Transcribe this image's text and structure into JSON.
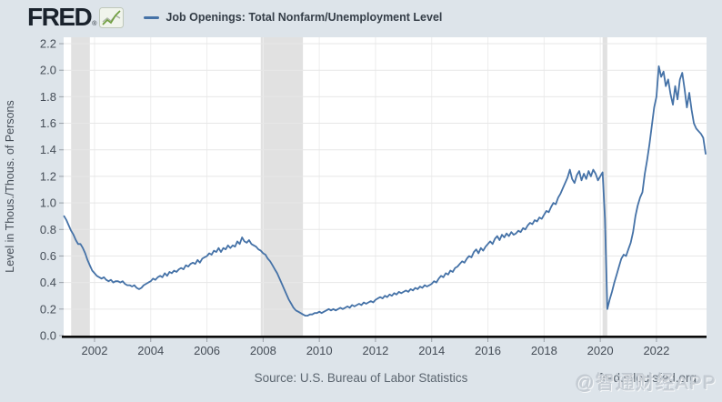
{
  "header": {
    "logo_text": "FRED",
    "logo_registered": "®",
    "legend": {
      "label": "Job Openings: Total Nonfarm/Unemployment Level"
    }
  },
  "footer": {
    "source": "Source: U.S. Bureau of Labor Statistics",
    "site": "fred.stlouisfed.org",
    "watermark": "@智通财经APP"
  },
  "colors": {
    "page_bg": "#dde4ea",
    "plot_bg": "#ffffff",
    "recession_band": "#e1e1e1",
    "grid_h": "#e7e7e7",
    "grid_v": "#ededed",
    "axis": "#0b0b0b",
    "tick": "#9ba1a8",
    "tick_text": "#454d57",
    "line": "#4572a7"
  },
  "chart_data": {
    "type": "line",
    "title": "Job Openings: Total Nonfarm/Unemployment Level",
    "xlabel": "",
    "ylabel": "Level in Thous./Thous. of Persons",
    "frequency": "monthly",
    "x_start": "2000-12",
    "x_end": "2023-10",
    "ylim": [
      0,
      2.25
    ],
    "y_ticks": [
      0.0,
      0.2,
      0.4,
      0.6,
      0.8,
      1.0,
      1.2,
      1.4,
      1.6,
      1.8,
      2.0,
      2.2
    ],
    "x_tick_years": [
      2002,
      2004,
      2006,
      2008,
      2010,
      2012,
      2014,
      2016,
      2018,
      2020,
      2022
    ],
    "grid": true,
    "legend_position": "top",
    "line_color": "#4572a7",
    "recessions": [
      {
        "start": "2001-03",
        "end": "2001-11"
      },
      {
        "start": "2007-12",
        "end": "2009-06"
      },
      {
        "start": "2020-02",
        "end": "2020-04"
      }
    ],
    "values": [
      0.9,
      0.87,
      0.83,
      0.79,
      0.76,
      0.72,
      0.69,
      0.69,
      0.66,
      0.62,
      0.57,
      0.53,
      0.49,
      0.47,
      0.45,
      0.44,
      0.43,
      0.44,
      0.42,
      0.41,
      0.42,
      0.4,
      0.41,
      0.41,
      0.4,
      0.41,
      0.39,
      0.38,
      0.38,
      0.37,
      0.38,
      0.36,
      0.35,
      0.36,
      0.38,
      0.39,
      0.4,
      0.41,
      0.43,
      0.42,
      0.44,
      0.45,
      0.44,
      0.47,
      0.45,
      0.48,
      0.47,
      0.49,
      0.48,
      0.5,
      0.51,
      0.5,
      0.53,
      0.52,
      0.54,
      0.55,
      0.54,
      0.57,
      0.55,
      0.58,
      0.59,
      0.6,
      0.62,
      0.61,
      0.64,
      0.63,
      0.66,
      0.63,
      0.66,
      0.65,
      0.68,
      0.66,
      0.68,
      0.67,
      0.71,
      0.69,
      0.74,
      0.71,
      0.7,
      0.72,
      0.69,
      0.68,
      0.67,
      0.65,
      0.64,
      0.62,
      0.61,
      0.58,
      0.56,
      0.53,
      0.5,
      0.47,
      0.43,
      0.39,
      0.35,
      0.31,
      0.27,
      0.24,
      0.21,
      0.19,
      0.18,
      0.17,
      0.16,
      0.15,
      0.15,
      0.16,
      0.16,
      0.17,
      0.17,
      0.18,
      0.17,
      0.18,
      0.19,
      0.2,
      0.19,
      0.2,
      0.19,
      0.2,
      0.21,
      0.2,
      0.21,
      0.22,
      0.21,
      0.23,
      0.22,
      0.23,
      0.24,
      0.23,
      0.25,
      0.24,
      0.25,
      0.26,
      0.25,
      0.27,
      0.28,
      0.29,
      0.28,
      0.3,
      0.29,
      0.31,
      0.3,
      0.32,
      0.31,
      0.33,
      0.32,
      0.33,
      0.34,
      0.33,
      0.35,
      0.34,
      0.36,
      0.35,
      0.37,
      0.36,
      0.38,
      0.37,
      0.38,
      0.39,
      0.41,
      0.4,
      0.43,
      0.45,
      0.44,
      0.47,
      0.46,
      0.49,
      0.48,
      0.51,
      0.52,
      0.54,
      0.56,
      0.55,
      0.58,
      0.6,
      0.59,
      0.63,
      0.65,
      0.62,
      0.66,
      0.64,
      0.67,
      0.69,
      0.71,
      0.69,
      0.73,
      0.75,
      0.72,
      0.76,
      0.74,
      0.77,
      0.75,
      0.78,
      0.76,
      0.77,
      0.79,
      0.78,
      0.81,
      0.8,
      0.83,
      0.85,
      0.84,
      0.87,
      0.86,
      0.89,
      0.88,
      0.91,
      0.94,
      0.93,
      0.97,
      1.0,
      0.99,
      1.04,
      1.07,
      1.11,
      1.15,
      1.19,
      1.25,
      1.18,
      1.15,
      1.21,
      1.24,
      1.17,
      1.22,
      1.18,
      1.24,
      1.2,
      1.25,
      1.22,
      1.17,
      1.2,
      1.23,
      0.88,
      0.2,
      0.27,
      0.33,
      0.4,
      0.46,
      0.52,
      0.58,
      0.61,
      0.6,
      0.65,
      0.7,
      0.78,
      0.9,
      0.98,
      1.04,
      1.08,
      1.22,
      1.32,
      1.44,
      1.58,
      1.72,
      1.8,
      2.03,
      1.95,
      1.99,
      1.88,
      1.93,
      1.82,
      1.74,
      1.88,
      1.78,
      1.93,
      1.98,
      1.86,
      1.72,
      1.83,
      1.7,
      1.6,
      1.56,
      1.54,
      1.52,
      1.49,
      1.37
    ]
  }
}
